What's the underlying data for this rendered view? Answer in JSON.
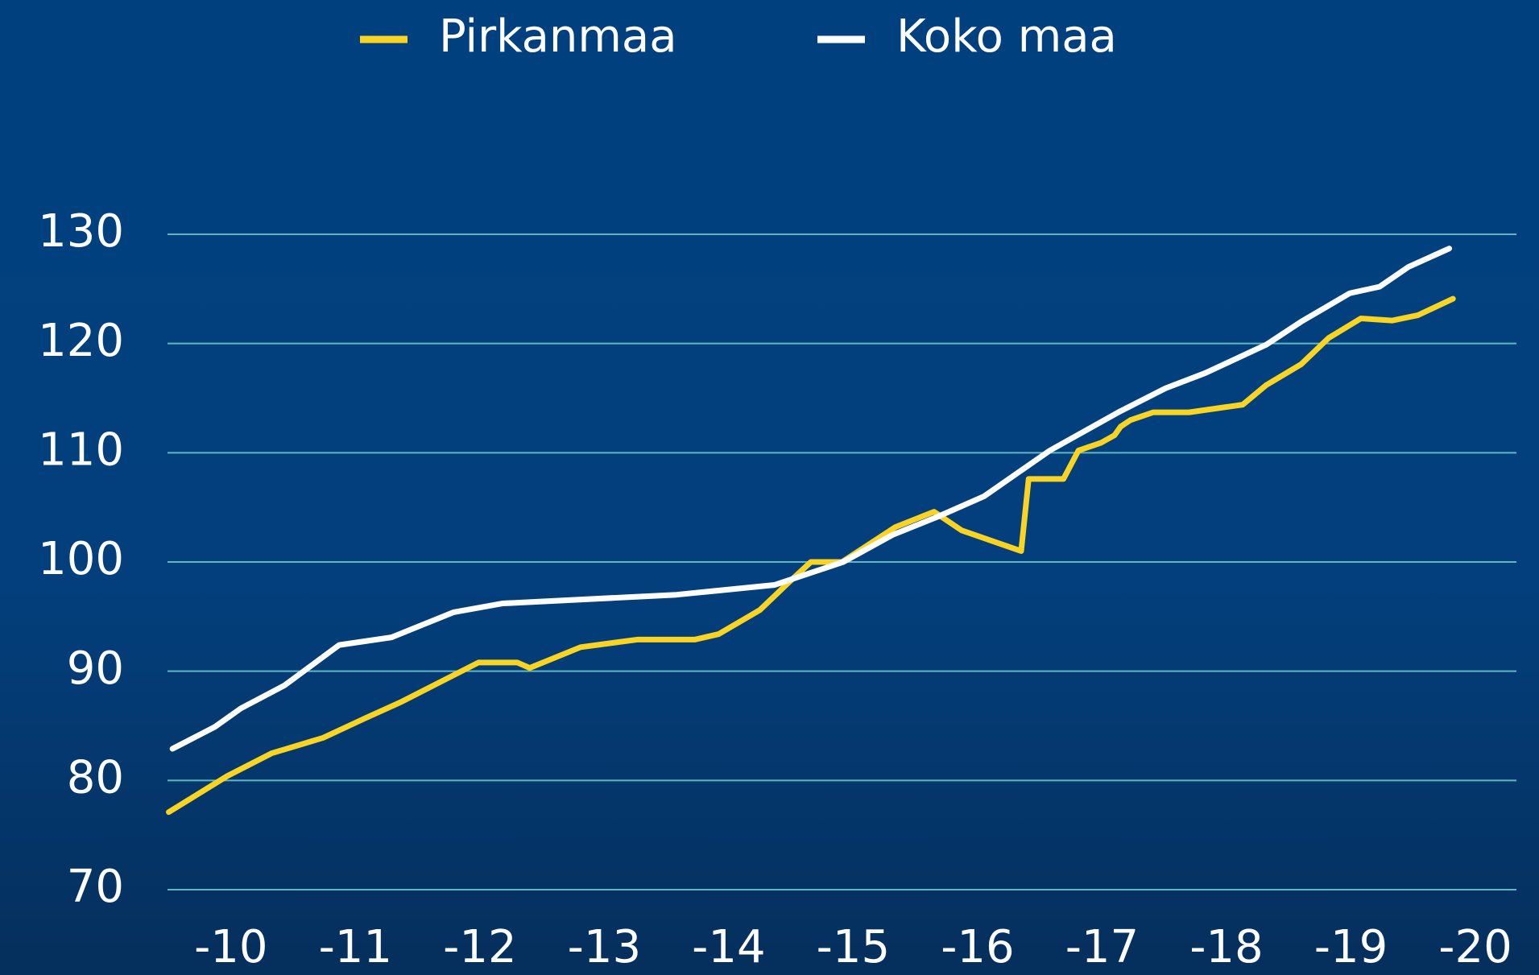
{
  "chart_data": {
    "type": "line",
    "series": [
      {
        "name": "Pirkanmaa",
        "color": "#f9d423",
        "x": [
          2009.5,
          2009.97,
          2010.33,
          2010.74,
          2011.06,
          2011.37,
          2011.99,
          2012.3,
          2012.4,
          2012.81,
          2013.27,
          2013.73,
          2013.92,
          2014.25,
          2014.48,
          2014.66,
          2014.91,
          2015.34,
          2015.65,
          2015.87,
          2016.35,
          2016.41,
          2016.69,
          2016.81,
          2016.99,
          2017.1,
          2017.15,
          2017.23,
          2017.41,
          2017.7,
          2018.13,
          2018.32,
          2018.6,
          2018.82,
          2019.08,
          2019.33,
          2019.54,
          2019.82
        ],
        "values": [
          77.1,
          80.4,
          82.5,
          83.9,
          85.6,
          87.2,
          90.8,
          90.8,
          90.3,
          92.2,
          92.9,
          92.9,
          93.4,
          95.6,
          98.1,
          100.0,
          100.0,
          103.2,
          104.6,
          102.9,
          101.0,
          107.6,
          107.6,
          110.2,
          110.9,
          111.6,
          112.4,
          113.0,
          113.7,
          113.7,
          114.4,
          116.2,
          118.1,
          120.5,
          122.3,
          122.1,
          122.6,
          124.1
        ]
      },
      {
        "name": "Koko maa",
        "color": "#ffffff",
        "x": [
          2009.53,
          2009.87,
          2010.08,
          2010.43,
          2010.87,
          2011.29,
          2011.79,
          2012.18,
          2013.58,
          2014.37,
          2014.92,
          2015.32,
          2015.67,
          2016.05,
          2016.58,
          2017.13,
          2017.51,
          2017.83,
          2018.32,
          2018.6,
          2018.99,
          2019.23,
          2019.46,
          2019.79
        ],
        "values": [
          82.9,
          84.9,
          86.6,
          88.7,
          92.4,
          93.1,
          95.4,
          96.2,
          97.0,
          97.9,
          100.0,
          102.5,
          104.1,
          106.0,
          110.2,
          113.7,
          115.9,
          117.3,
          119.9,
          122.0,
          124.6,
          125.2,
          127.0,
          128.7
        ]
      }
    ],
    "xlim": [
      2009.49,
      2020.33
    ],
    "xticks": [
      {
        "value": 2010,
        "label": "-10"
      },
      {
        "value": 2011,
        "label": "-11"
      },
      {
        "value": 2012,
        "label": "-12"
      },
      {
        "value": 2013,
        "label": "-13"
      },
      {
        "value": 2014,
        "label": "-14"
      },
      {
        "value": 2015,
        "label": "-15"
      },
      {
        "value": 2016,
        "label": "-16"
      },
      {
        "value": 2017,
        "label": "-17"
      },
      {
        "value": 2018,
        "label": "-18"
      },
      {
        "value": 2019,
        "label": "-19"
      },
      {
        "value": 2020,
        "label": "-20"
      }
    ],
    "ylim": [
      70,
      130
    ],
    "yticks": [
      70,
      80,
      90,
      100,
      110,
      120,
      130
    ],
    "grid": true,
    "grid_color": "#5fb8c4",
    "legend": "top"
  }
}
